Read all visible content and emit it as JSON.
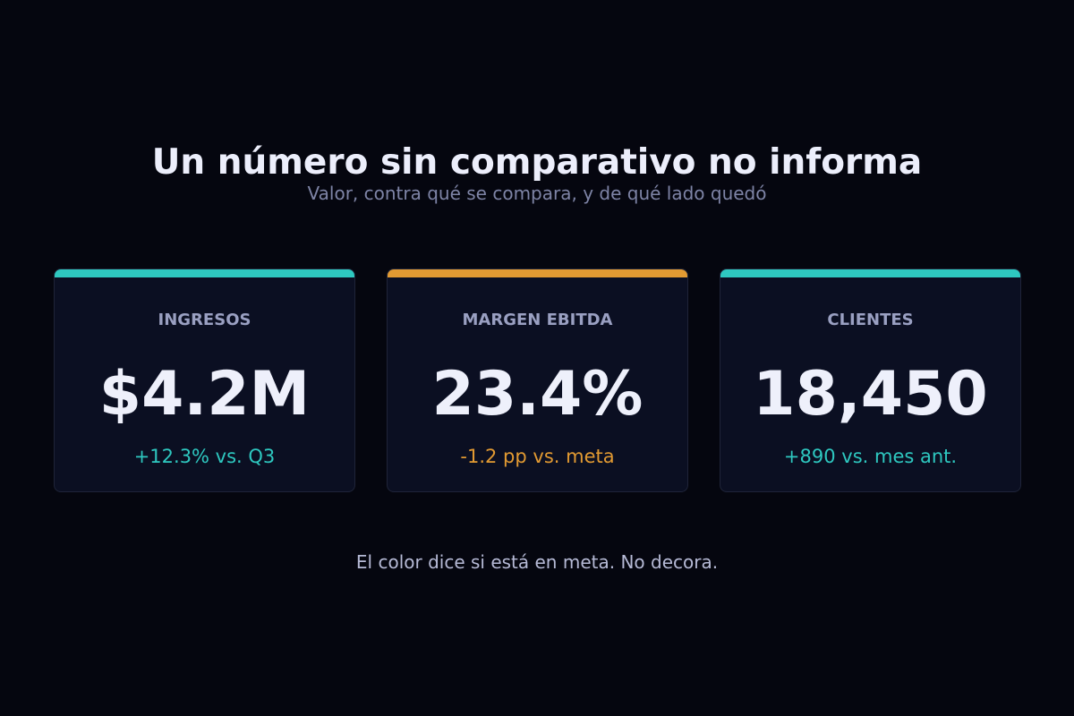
{
  "title": "Un número sin comparativo no informa",
  "subtitle": "Valor, contra qué se compara, y de qué lado quedó",
  "cards": [
    {
      "label": "INGRESOS",
      "value": "$4.2M",
      "delta": "+12.3% vs. Q3",
      "status": "on-target",
      "accent_color": "#2ec8c0"
    },
    {
      "label": "MARGEN EBITDA",
      "value": "23.4%",
      "delta": "-1.2 pp vs. meta",
      "status": "off-target",
      "accent_color": "#e29a32"
    },
    {
      "label": "CLIENTES",
      "value": "18,450",
      "delta": "+890 vs. mes ant.",
      "status": "on-target",
      "accent_color": "#2ec8c0"
    }
  ],
  "footer": "El color dice si está en meta. No decora.",
  "colors": {
    "background": "#05060f",
    "card_background": "#0b0f22",
    "positive": "#2ec8c0",
    "warning": "#e29a32"
  }
}
